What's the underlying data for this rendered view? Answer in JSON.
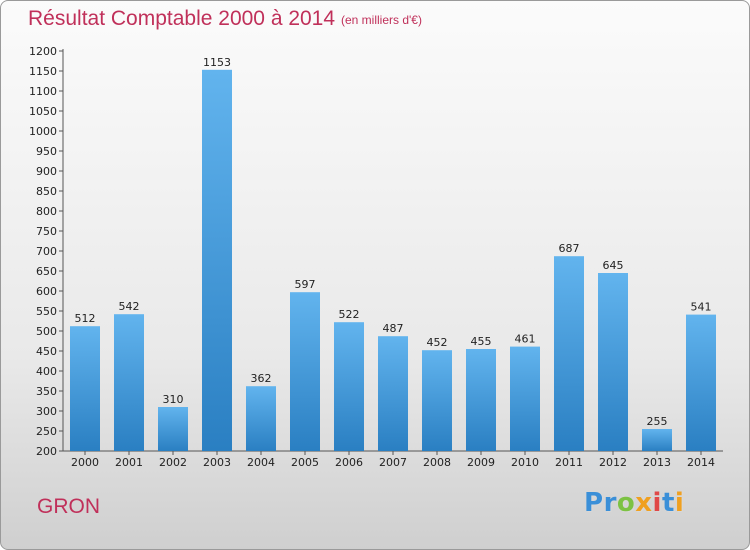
{
  "header": {
    "title": "Résultat Comptable 2000 à 2014",
    "unit": "(en milliers d'€)"
  },
  "footer": {
    "commune": "GRON",
    "logo_letters": [
      {
        "char": "P",
        "color": "#3a8fd8"
      },
      {
        "char": "r",
        "color": "#3a8fd8"
      },
      {
        "char": "o",
        "color": "#7cc243"
      },
      {
        "char": "x",
        "color": "#f0a020"
      },
      {
        "char": "i",
        "color": "#e04848"
      },
      {
        "char": "t",
        "color": "#3a8fd8"
      },
      {
        "char": "i",
        "color": "#f0a020"
      }
    ]
  },
  "chart_data": {
    "type": "bar",
    "title": "Résultat Comptable 2000 à 2014",
    "subtitle": "(en milliers d'€)",
    "categories": [
      "2000",
      "2001",
      "2002",
      "2003",
      "2004",
      "2005",
      "2006",
      "2007",
      "2008",
      "2009",
      "2010",
      "2011",
      "2012",
      "2013",
      "2014"
    ],
    "values": [
      512,
      542,
      310,
      1153,
      362,
      597,
      522,
      487,
      452,
      455,
      461,
      687,
      645,
      255,
      541
    ],
    "ylim": [
      200,
      1200
    ],
    "y_ticks": [
      200,
      250,
      300,
      350,
      400,
      450,
      500,
      550,
      600,
      650,
      700,
      750,
      800,
      850,
      900,
      950,
      1000,
      1050,
      1100,
      1150,
      1200
    ],
    "grid": false,
    "legend": "none",
    "bar_color_light": "#62b4ee",
    "bar_color_dark": "#2a7fc2"
  }
}
